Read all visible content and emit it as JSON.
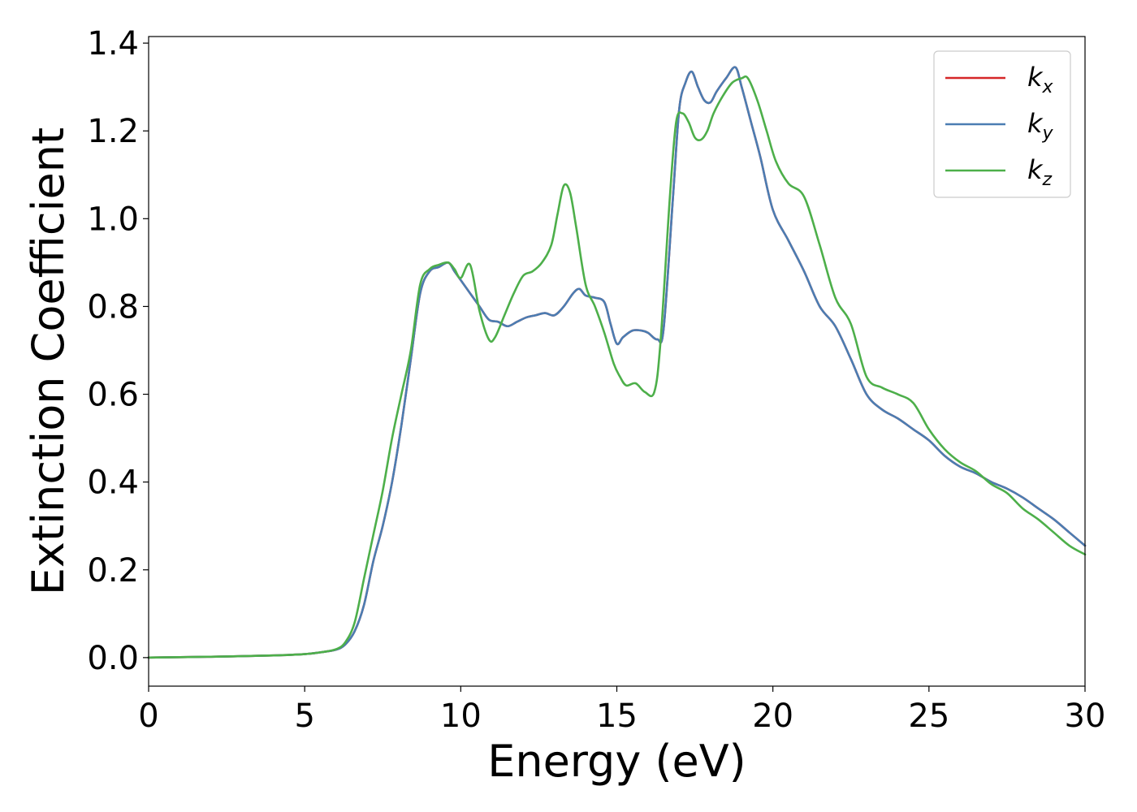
{
  "chart_data": {
    "type": "line",
    "xlabel": "Energy (eV)",
    "ylabel": "Extinction Coefficient",
    "xlim": [
      0,
      30
    ],
    "ylim": [
      -0.065,
      1.415
    ],
    "xticks": [
      "0",
      "5",
      "10",
      "15",
      "20",
      "25",
      "30"
    ],
    "yticks": [
      "0.0",
      "0.2",
      "0.4",
      "0.6",
      "0.8",
      "1.0",
      "1.2",
      "1.4"
    ],
    "grid": false,
    "legend_position": "top-right",
    "series": [
      {
        "name": "k",
        "subscript": "x",
        "color": "#d62728",
        "x": [
          0,
          2,
          4,
          5,
          5.5,
          6,
          6.3,
          6.6,
          6.9,
          7.2,
          7.5,
          7.8,
          8.1,
          8.4,
          8.7,
          9.0,
          9.3,
          9.6,
          9.8,
          10.0,
          10.3,
          10.6,
          10.9,
          11.2,
          11.5,
          11.8,
          12.1,
          12.4,
          12.7,
          13.0,
          13.3,
          13.6,
          13.8,
          14.0,
          14.3,
          14.6,
          14.8,
          15.0,
          15.2,
          15.5,
          15.8,
          16.0,
          16.3,
          16.5,
          16.8,
          17.0,
          17.2,
          17.4,
          17.6,
          17.8,
          18.0,
          18.2,
          18.5,
          18.8,
          19.0,
          19.3,
          19.6,
          20.0,
          20.5,
          21.0,
          21.5,
          22.0,
          22.5,
          23.0,
          23.5,
          24.0,
          24.5,
          25.0,
          25.5,
          26.0,
          26.5,
          27.0,
          27.5,
          28.0,
          28.5,
          29.0,
          29.5,
          30.0
        ],
        "values": [
          0.0,
          0.002,
          0.005,
          0.008,
          0.012,
          0.018,
          0.03,
          0.06,
          0.12,
          0.22,
          0.3,
          0.4,
          0.53,
          0.68,
          0.83,
          0.88,
          0.89,
          0.9,
          0.88,
          0.86,
          0.83,
          0.8,
          0.77,
          0.765,
          0.755,
          0.765,
          0.775,
          0.78,
          0.785,
          0.78,
          0.8,
          0.83,
          0.84,
          0.825,
          0.82,
          0.81,
          0.76,
          0.715,
          0.73,
          0.745,
          0.745,
          0.74,
          0.725,
          0.75,
          1.05,
          1.25,
          1.31,
          1.335,
          1.3,
          1.27,
          1.265,
          1.29,
          1.32,
          1.345,
          1.3,
          1.22,
          1.14,
          1.02,
          0.95,
          0.88,
          0.8,
          0.755,
          0.68,
          0.6,
          0.565,
          0.545,
          0.52,
          0.495,
          0.46,
          0.435,
          0.42,
          0.4,
          0.385,
          0.365,
          0.34,
          0.315,
          0.285,
          0.255
        ]
      },
      {
        "name": "k",
        "subscript": "y",
        "color": "#4b7db2",
        "x": [
          0,
          2,
          4,
          5,
          5.5,
          6,
          6.3,
          6.6,
          6.9,
          7.2,
          7.5,
          7.8,
          8.1,
          8.4,
          8.7,
          9.0,
          9.3,
          9.6,
          9.8,
          10.0,
          10.3,
          10.6,
          10.9,
          11.2,
          11.5,
          11.8,
          12.1,
          12.4,
          12.7,
          13.0,
          13.3,
          13.6,
          13.8,
          14.0,
          14.3,
          14.6,
          14.8,
          15.0,
          15.2,
          15.5,
          15.8,
          16.0,
          16.3,
          16.5,
          16.8,
          17.0,
          17.2,
          17.4,
          17.6,
          17.8,
          18.0,
          18.2,
          18.5,
          18.8,
          19.0,
          19.3,
          19.6,
          20.0,
          20.5,
          21.0,
          21.5,
          22.0,
          22.5,
          23.0,
          23.5,
          24.0,
          24.5,
          25.0,
          25.5,
          26.0,
          26.5,
          27.0,
          27.5,
          28.0,
          28.5,
          29.0,
          29.5,
          30.0
        ],
        "values": [
          0.0,
          0.002,
          0.005,
          0.008,
          0.012,
          0.018,
          0.03,
          0.06,
          0.12,
          0.22,
          0.3,
          0.4,
          0.53,
          0.68,
          0.83,
          0.88,
          0.89,
          0.9,
          0.88,
          0.86,
          0.83,
          0.8,
          0.77,
          0.765,
          0.755,
          0.765,
          0.775,
          0.78,
          0.785,
          0.78,
          0.8,
          0.83,
          0.84,
          0.825,
          0.82,
          0.81,
          0.76,
          0.715,
          0.73,
          0.745,
          0.745,
          0.74,
          0.725,
          0.75,
          1.05,
          1.25,
          1.31,
          1.335,
          1.3,
          1.27,
          1.265,
          1.29,
          1.32,
          1.345,
          1.3,
          1.22,
          1.14,
          1.02,
          0.95,
          0.88,
          0.8,
          0.755,
          0.68,
          0.6,
          0.565,
          0.545,
          0.52,
          0.495,
          0.46,
          0.435,
          0.42,
          0.4,
          0.385,
          0.365,
          0.34,
          0.315,
          0.285,
          0.255
        ]
      },
      {
        "name": "k",
        "subscript": "z",
        "color": "#4daf4a",
        "x": [
          0,
          2,
          4,
          5,
          5.5,
          6,
          6.3,
          6.6,
          6.9,
          7.2,
          7.5,
          7.8,
          8.1,
          8.4,
          8.7,
          9.0,
          9.3,
          9.6,
          9.8,
          10.0,
          10.3,
          10.6,
          10.9,
          11.1,
          11.4,
          11.7,
          12.0,
          12.3,
          12.6,
          12.9,
          13.1,
          13.3,
          13.5,
          13.7,
          14.0,
          14.3,
          14.6,
          14.9,
          15.1,
          15.3,
          15.6,
          15.9,
          16.2,
          16.4,
          16.7,
          16.9,
          17.1,
          17.3,
          17.5,
          17.7,
          17.9,
          18.1,
          18.4,
          18.7,
          19.0,
          19.2,
          19.5,
          19.8,
          20.1,
          20.5,
          21.0,
          21.5,
          22.0,
          22.5,
          23.0,
          23.5,
          24.0,
          24.5,
          25.0,
          25.5,
          26.0,
          26.5,
          27.0,
          27.5,
          28.0,
          28.5,
          29.0,
          29.5,
          30.0
        ],
        "values": [
          0.0,
          0.002,
          0.005,
          0.008,
          0.012,
          0.019,
          0.035,
          0.08,
          0.18,
          0.28,
          0.38,
          0.5,
          0.6,
          0.7,
          0.85,
          0.885,
          0.895,
          0.9,
          0.885,
          0.865,
          0.895,
          0.79,
          0.725,
          0.73,
          0.78,
          0.83,
          0.87,
          0.88,
          0.9,
          0.94,
          1.01,
          1.075,
          1.06,
          0.98,
          0.85,
          0.8,
          0.74,
          0.67,
          0.64,
          0.62,
          0.625,
          0.605,
          0.605,
          0.72,
          1.05,
          1.22,
          1.24,
          1.22,
          1.185,
          1.18,
          1.2,
          1.24,
          1.28,
          1.31,
          1.32,
          1.32,
          1.27,
          1.2,
          1.13,
          1.08,
          1.05,
          0.94,
          0.82,
          0.76,
          0.64,
          0.615,
          0.6,
          0.58,
          0.52,
          0.475,
          0.445,
          0.425,
          0.395,
          0.375,
          0.34,
          0.315,
          0.285,
          0.255,
          0.235
        ]
      }
    ]
  }
}
